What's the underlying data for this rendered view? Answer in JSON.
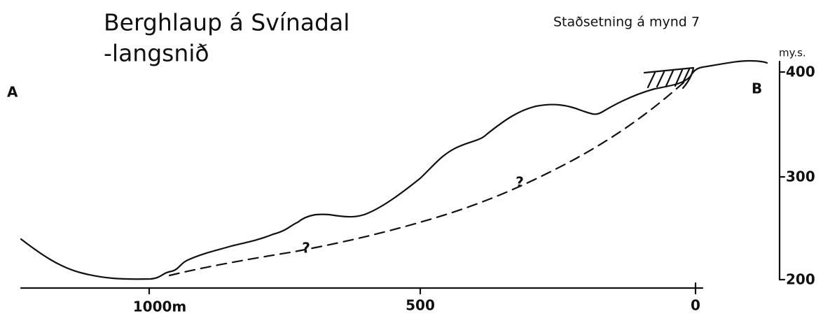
{
  "header": {
    "title": "Berghlaup á Svínadal",
    "subtitle": "-langsnið",
    "note": "Staðsetning á mynd 7"
  },
  "profile": {
    "start_label": "A",
    "end_label": "B",
    "uncertain_marks": [
      "?",
      "?"
    ]
  },
  "distance_axis": {
    "ticks": [
      "1000m",
      "500",
      "0"
    ]
  },
  "elevation_axis": {
    "unit": "my.s.",
    "ticks": [
      "400",
      "300",
      "200"
    ]
  }
}
